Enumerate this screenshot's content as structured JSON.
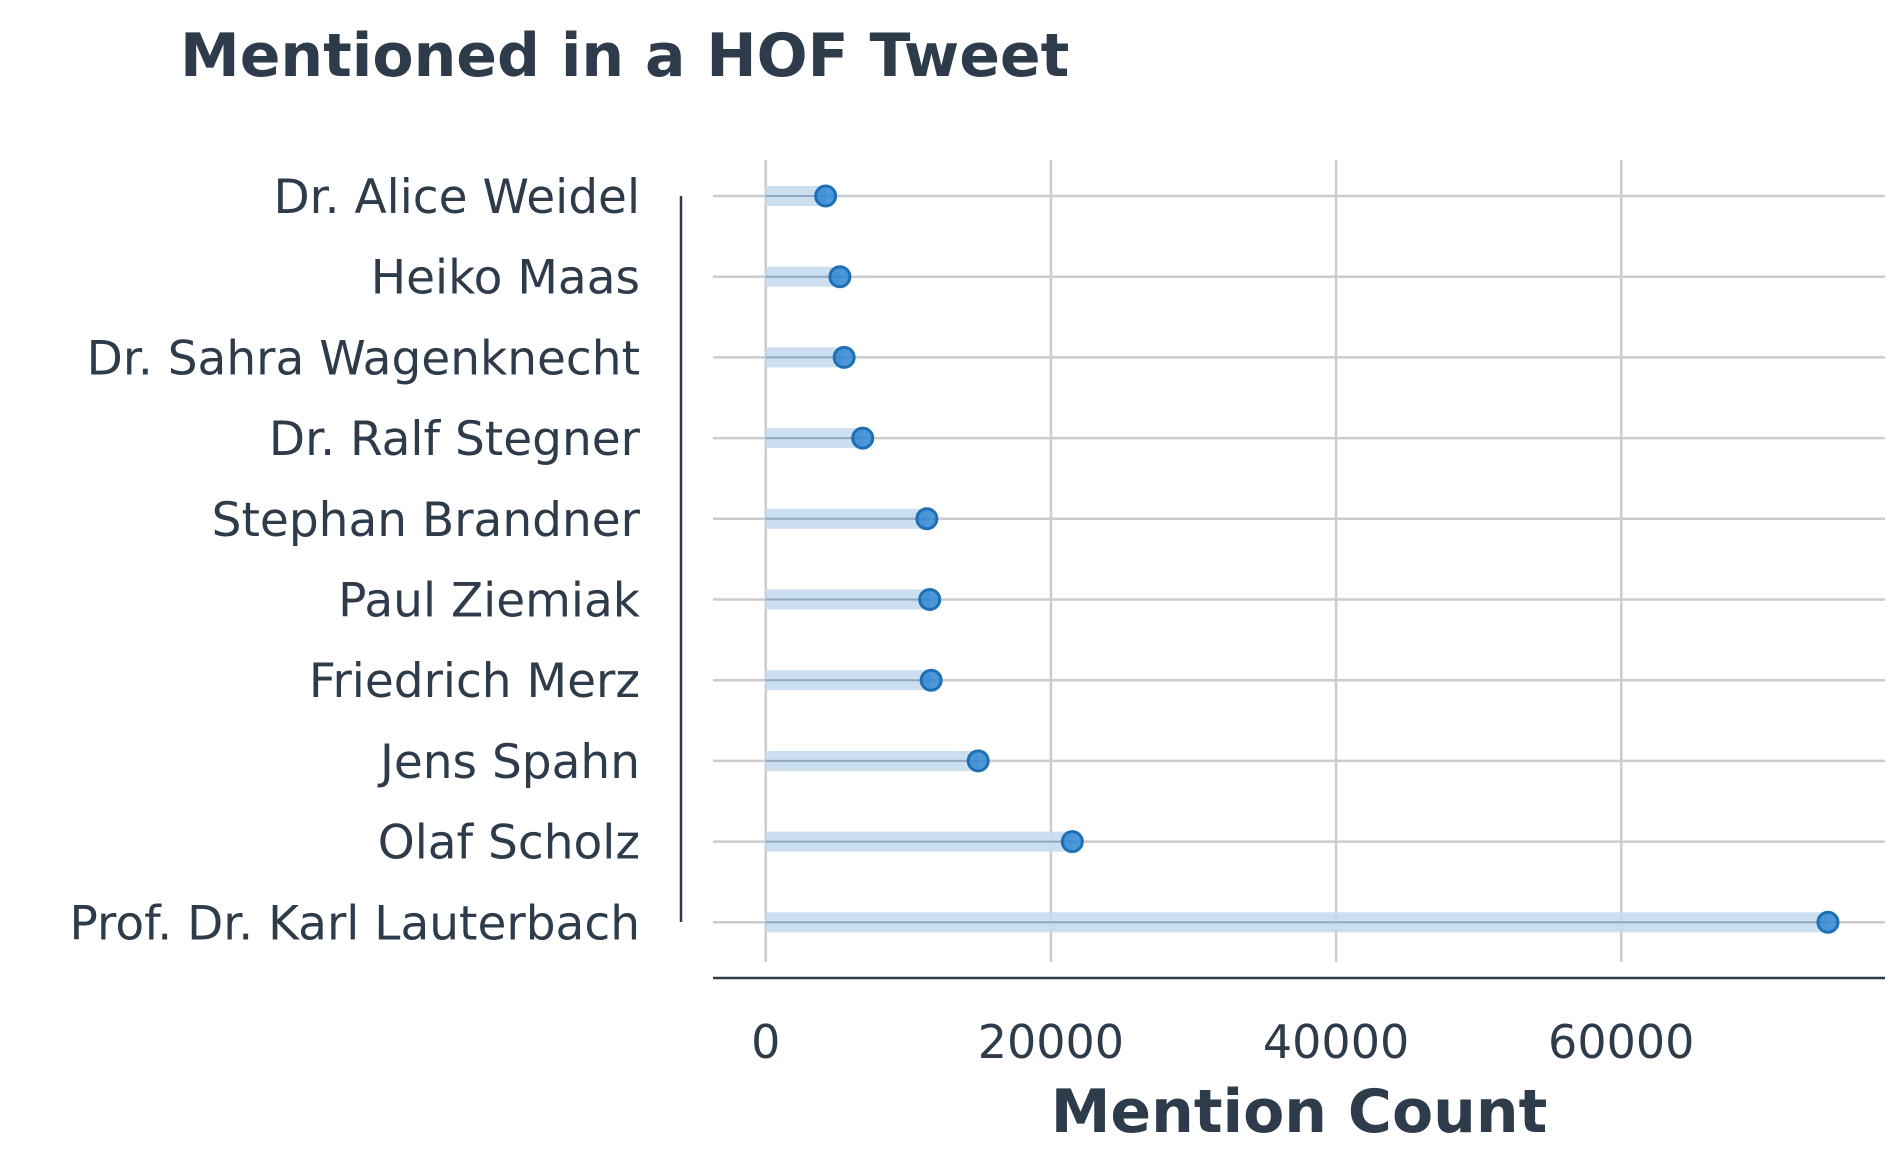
{
  "chart_data": {
    "type": "lollipop",
    "title": "Mentioned in a HOF Tweet",
    "xlabel": "Mention Count",
    "ylabel": "",
    "xlim": [
      -3700,
      78500
    ],
    "xticks": [
      0,
      20000,
      40000,
      60000
    ],
    "grid": true,
    "categories": [
      "Dr. Alice Weidel",
      "Heiko Maas",
      "Dr. Sahra Wagenknecht",
      "Dr. Ralf Stegner",
      "Stephan Brandner",
      "Paul Ziemiak",
      "Friedrich Merz",
      "Jens Spahn",
      "Olaf Scholz",
      "Prof. Dr. Karl Lauterbach"
    ],
    "values": [
      4200,
      5200,
      5500,
      6800,
      11300,
      11500,
      11600,
      14900,
      21500,
      74500
    ],
    "colors": {
      "point": "#2e86d4",
      "stem": "#c6dcef",
      "grid": "#cccccc",
      "text": "#2e3b4b"
    }
  }
}
